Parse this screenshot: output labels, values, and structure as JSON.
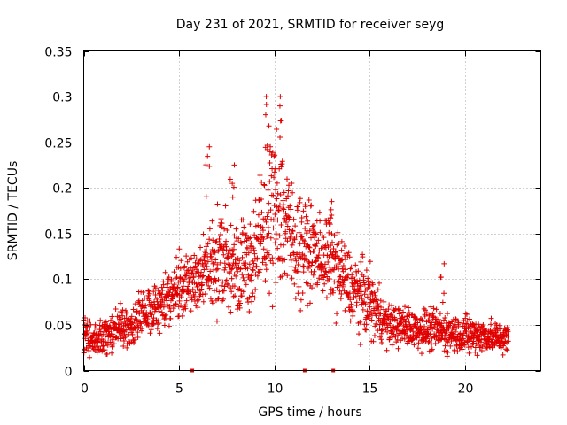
{
  "chart_data": {
    "type": "scatter",
    "title": "Day 231 of 2021, SRMTID for receiver seyg",
    "xlabel": "GPS time / hours",
    "ylabel": "SRMTID / TECUs",
    "xlim": [
      0,
      24
    ],
    "ylim": [
      0,
      0.35
    ],
    "x_ticks": [
      0,
      5,
      10,
      15,
      20
    ],
    "x_tick_labels": [
      "0",
      "5",
      "10",
      "15",
      "20"
    ],
    "y_ticks": [
      0,
      0.05,
      0.1,
      0.15,
      0.2,
      0.25,
      0.3,
      0.35
    ],
    "y_tick_labels": [
      "0",
      "0.05",
      "0.1",
      "0.15",
      "0.2",
      "0.25",
      "0.3",
      "0.35"
    ],
    "grid": true,
    "marker": "+",
    "color": "#e00000",
    "series": [
      {
        "name": "SRMTID",
        "envelope": [
          {
            "x": 0.0,
            "mean": 0.038,
            "spread": 0.012
          },
          {
            "x": 1.0,
            "mean": 0.035,
            "spread": 0.012
          },
          {
            "x": 2.0,
            "mean": 0.05,
            "spread": 0.014
          },
          {
            "x": 2.5,
            "mean": 0.045,
            "spread": 0.016
          },
          {
            "x": 3.0,
            "mean": 0.065,
            "spread": 0.018
          },
          {
            "x": 4.0,
            "mean": 0.07,
            "spread": 0.018
          },
          {
            "x": 5.0,
            "mean": 0.09,
            "spread": 0.02
          },
          {
            "x": 6.0,
            "mean": 0.1,
            "spread": 0.025
          },
          {
            "x": 7.0,
            "mean": 0.12,
            "spread": 0.035
          },
          {
            "x": 8.0,
            "mean": 0.115,
            "spread": 0.03
          },
          {
            "x": 9.0,
            "mean": 0.125,
            "spread": 0.035
          },
          {
            "x": 9.7,
            "mean": 0.17,
            "spread": 0.055
          },
          {
            "x": 10.3,
            "mean": 0.18,
            "spread": 0.06
          },
          {
            "x": 11.0,
            "mean": 0.14,
            "spread": 0.04
          },
          {
            "x": 12.0,
            "mean": 0.13,
            "spread": 0.03
          },
          {
            "x": 13.0,
            "mean": 0.12,
            "spread": 0.03
          },
          {
            "x": 14.0,
            "mean": 0.09,
            "spread": 0.025
          },
          {
            "x": 15.0,
            "mean": 0.075,
            "spread": 0.025
          },
          {
            "x": 16.0,
            "mean": 0.05,
            "spread": 0.014
          },
          {
            "x": 18.0,
            "mean": 0.045,
            "spread": 0.014
          },
          {
            "x": 20.0,
            "mean": 0.04,
            "spread": 0.014
          },
          {
            "x": 22.3,
            "mean": 0.035,
            "spread": 0.01
          }
        ],
        "peaks": [
          {
            "x": 6.5,
            "y": 0.245
          },
          {
            "x": 7.8,
            "y": 0.225
          },
          {
            "x": 9.6,
            "y": 0.3
          },
          {
            "x": 10.4,
            "y": 0.3
          },
          {
            "x": 13.0,
            "y": 0.185
          },
          {
            "x": 18.8,
            "y": 0.117
          }
        ],
        "zero_points": [
          {
            "x": 5.7,
            "y": 0
          },
          {
            "x": 11.6,
            "y": 0
          },
          {
            "x": 13.1,
            "y": 0
          }
        ]
      }
    ]
  }
}
